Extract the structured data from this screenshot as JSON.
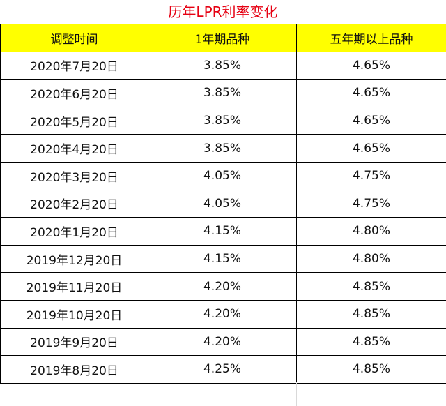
{
  "title": "历年LPR利率变化",
  "headers": [
    "调整时间",
    "1年期品种",
    "五年期以上品种"
  ],
  "rows": [
    [
      "2020年7月20日",
      "3.85%",
      "4.65%"
    ],
    [
      "2020年6月20日",
      "3.85%",
      "4.65%"
    ],
    [
      "2020年5月20日",
      "3.85%",
      "4.65%"
    ],
    [
      "2020年4月20日",
      "3.85%",
      "4.65%"
    ],
    [
      "2020年3月20日",
      "4.05%",
      "4.75%"
    ],
    [
      "2020年2月20日",
      "4.05%",
      "4.75%"
    ],
    [
      "2020年1月20日",
      "4.15%",
      "4.80%"
    ],
    [
      "2019年12月20日",
      "4.15%",
      "4.80%"
    ],
    [
      "2019年11月20日",
      "4.20%",
      "4.85%"
    ],
    [
      "2019年10月20日",
      "4.20%",
      "4.85%"
    ],
    [
      "2019年9月20日",
      "4.20%",
      "4.85%"
    ],
    [
      "2019年8月20日",
      "4.25%",
      "4.85%"
    ]
  ],
  "colors": {
    "title": "#e60012",
    "header_bg": "#ffff00"
  }
}
